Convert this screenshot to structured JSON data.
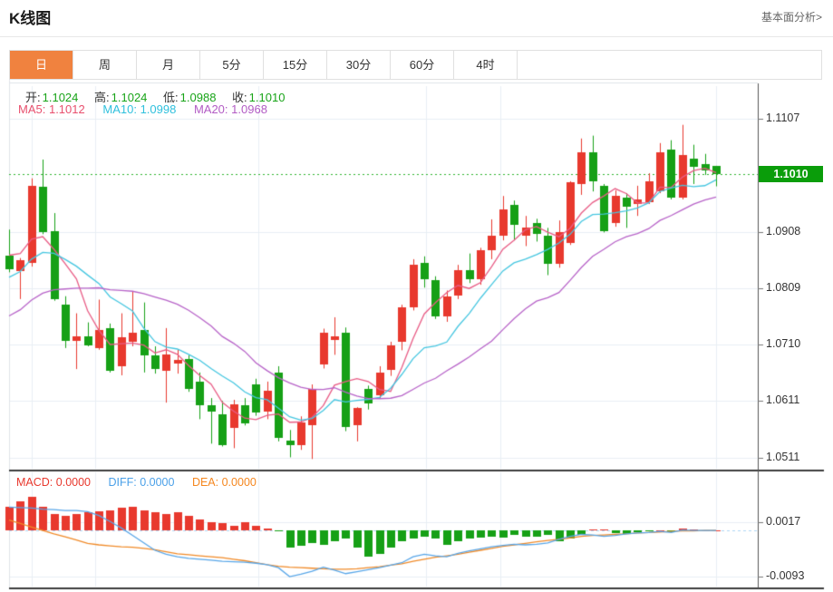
{
  "page": {
    "title": "K线图",
    "analysis_link": "基本面分析>"
  },
  "tabs": [
    {
      "label": "日",
      "active": true
    },
    {
      "label": "周",
      "active": false
    },
    {
      "label": "月",
      "active": false
    },
    {
      "label": "5分",
      "active": false
    },
    {
      "label": "15分",
      "active": false
    },
    {
      "label": "30分",
      "active": false
    },
    {
      "label": "60分",
      "active": false
    },
    {
      "label": "4时",
      "active": false
    }
  ],
  "ohlc": {
    "open_label": "开:",
    "open": "1.1024",
    "high_label": "高:",
    "high": "1.1024",
    "low_label": "低:",
    "low": "1.0988",
    "close_label": "收:",
    "close": "1.1010"
  },
  "ma": {
    "ma5_label": "MA5:",
    "ma5": "1.1012",
    "ma10_label": "MA10:",
    "ma10": "1.0998",
    "ma20_label": "MA20:",
    "ma20": "1.0968"
  },
  "macd_readout": {
    "macd_label": "MACD:",
    "macd": "0.0000",
    "diff_label": "DIFF:",
    "diff": "0.0000",
    "dea_label": "DEA:",
    "dea": "0.0000"
  },
  "current_price": "1.1010",
  "chart_data": {
    "type": "candlestick",
    "title": "K线图",
    "x_axis": {
      "labels_visible": false,
      "n_bars": 64
    },
    "price_panel": {
      "ylim": [
        1.0492,
        1.1164
      ],
      "yticks": [
        1.1107,
        1.0908,
        1.0809,
        1.071,
        1.0611,
        1.0511
      ],
      "current_price": 1.101,
      "grid": true,
      "ma_periods": [
        5,
        10,
        20
      ],
      "seed_closes": [
        1.064,
        1.065,
        1.0662,
        1.0674,
        1.0686,
        1.0698,
        1.071,
        1.0722,
        1.0734,
        1.0746,
        1.0758,
        1.0772,
        1.0788,
        1.0806,
        1.0824,
        1.0844,
        1.0864,
        1.0884,
        1.09
      ],
      "candles": [
        [
          1.0867,
          1.0912,
          1.0837,
          1.0843
        ],
        [
          1.084,
          1.0862,
          1.079,
          1.0859
        ],
        [
          1.0853,
          1.1002,
          1.0847,
          1.0989
        ],
        [
          1.0987,
          1.1035,
          1.0904,
          1.0907
        ],
        [
          1.0909,
          1.0941,
          1.0787,
          1.0789
        ],
        [
          1.0781,
          1.0795,
          1.0704,
          1.0717
        ],
        [
          1.0717,
          1.0765,
          1.0667,
          1.0725
        ],
        [
          1.0725,
          1.0749,
          1.0707,
          1.0709
        ],
        [
          1.0704,
          1.0789,
          1.0701,
          1.0736
        ],
        [
          1.0739,
          1.0747,
          1.0661,
          1.0664
        ],
        [
          1.0672,
          1.0765,
          1.0656,
          1.0723
        ],
        [
          1.0715,
          1.0803,
          1.0707,
          1.0731
        ],
        [
          1.0736,
          1.0784,
          1.0661,
          1.0691
        ],
        [
          1.0691,
          1.0707,
          1.0659,
          1.0667
        ],
        [
          1.0664,
          1.0739,
          1.0608,
          1.0693
        ],
        [
          1.0677,
          1.0701,
          1.0659,
          1.0683
        ],
        [
          1.0685,
          1.0691,
          1.0627,
          1.0632
        ],
        [
          1.0645,
          1.0661,
          1.0579,
          1.0603
        ],
        [
          1.0603,
          1.0616,
          1.0536,
          1.0592
        ],
        [
          1.0587,
          1.0611,
          1.0531,
          1.0533
        ],
        [
          1.0563,
          1.0613,
          1.0528,
          1.0605
        ],
        [
          1.0603,
          1.0616,
          1.0568,
          1.0571
        ],
        [
          1.064,
          1.065,
          1.0585,
          1.059
        ],
        [
          1.0592,
          1.0645,
          1.0579,
          1.0629
        ],
        [
          1.066,
          1.0672,
          1.054,
          1.0545
        ],
        [
          1.0541,
          1.056,
          1.0512,
          1.0533
        ],
        [
          1.0533,
          1.0584,
          1.0525,
          1.0573
        ],
        [
          1.0568,
          1.064,
          1.0509,
          1.0632
        ],
        [
          1.0675,
          1.0738,
          1.0668,
          1.0731
        ],
        [
          1.0718,
          1.0758,
          1.0692,
          1.0725
        ],
        [
          1.0731,
          1.074,
          1.0558,
          1.0565
        ],
        [
          1.0568,
          1.06,
          1.054,
          1.0598
        ],
        [
          1.0632,
          1.0638,
          1.0596,
          1.0607
        ],
        [
          1.0621,
          1.0672,
          1.0615,
          1.0661
        ],
        [
          1.0665,
          1.0715,
          1.0655,
          1.0708
        ],
        [
          1.0715,
          1.078,
          1.07,
          1.0776
        ],
        [
          1.0776,
          1.086,
          1.077,
          1.0851
        ],
        [
          1.0853,
          1.0865,
          1.081,
          1.0824
        ],
        [
          1.0824,
          1.083,
          1.0755,
          1.076
        ],
        [
          1.076,
          1.0805,
          1.075,
          1.0795
        ],
        [
          1.0795,
          1.085,
          1.079,
          1.084
        ],
        [
          1.084,
          1.087,
          1.0818,
          1.0824
        ],
        [
          1.0824,
          1.088,
          1.0815,
          1.0875
        ],
        [
          1.0875,
          1.093,
          1.086,
          1.0901
        ],
        [
          1.0901,
          1.0971,
          1.0893,
          1.0947
        ],
        [
          1.0955,
          1.0963,
          1.0893,
          1.092
        ],
        [
          1.0901,
          1.0936,
          1.0883,
          1.0915
        ],
        [
          1.0923,
          1.0931,
          1.0891,
          1.0904
        ],
        [
          1.0901,
          1.0915,
          1.0832,
          1.0851
        ],
        [
          1.0851,
          1.0928,
          1.0845,
          1.0907
        ],
        [
          1.0888,
          1.0997,
          1.0885,
          1.0995
        ],
        [
          1.0992,
          1.1072,
          1.0973,
          1.1048
        ],
        [
          1.1048,
          1.1077,
          1.0979,
          1.0997
        ],
        [
          1.0989,
          1.0992,
          1.0907,
          1.0909
        ],
        [
          1.0923,
          1.0981,
          1.0917,
          1.0971
        ],
        [
          1.0968,
          1.0976,
          1.0915,
          1.0952
        ],
        [
          1.0957,
          1.0989,
          1.0936,
          1.0965
        ],
        [
          1.096,
          1.1011,
          1.0957,
          1.0997
        ],
        [
          1.0979,
          1.1064,
          1.0976,
          1.1048
        ],
        [
          1.1053,
          1.1069,
          1.0965,
          1.0968
        ],
        [
          1.0968,
          1.1096,
          1.0965,
          1.1043
        ],
        [
          1.1037,
          1.1061,
          1.0992,
          1.1023
        ],
        [
          1.1027,
          1.1045,
          1.1008,
          1.1016
        ],
        [
          1.1024,
          1.1024,
          1.0988,
          1.101
        ]
      ]
    },
    "macd_panel": {
      "ylim": [
        -0.0113,
        0.0117
      ],
      "yticks": [
        0.0017,
        -0.0093
      ],
      "zero_line": 0.0,
      "hist": [
        0.0047,
        0.0059,
        0.0067,
        0.0048,
        0.0033,
        0.0029,
        0.0033,
        0.0036,
        0.0038,
        0.004,
        0.0045,
        0.0047,
        0.004,
        0.0036,
        0.0033,
        0.0036,
        0.0029,
        0.0022,
        0.0017,
        0.0014,
        0.001,
        0.0016,
        0.001,
        0.0003,
        -0.0002,
        -0.0035,
        -0.0031,
        -0.0026,
        -0.0029,
        -0.0021,
        -0.0017,
        -0.0035,
        -0.0052,
        -0.0047,
        -0.0035,
        -0.0022,
        -0.0017,
        -0.0012,
        -0.0017,
        -0.0029,
        -0.0022,
        -0.0017,
        -0.0014,
        -0.0012,
        -0.0014,
        -0.0009,
        -0.0012,
        -0.0012,
        -0.0009,
        -0.0021,
        -0.0017,
        -0.0009,
        0.0002,
        0.0002,
        -0.0005,
        -0.0007,
        -0.0003,
        -0.0002,
        0.0001,
        -0.0004,
        0.0004,
        0.0002,
        0.0001,
        0.0
      ],
      "diff": [
        0.0047,
        0.0046,
        0.0045,
        0.0043,
        0.0042,
        0.004,
        0.004,
        0.0038,
        0.003,
        0.0018,
        0.0005,
        -0.001,
        -0.0025,
        -0.004,
        -0.0048,
        -0.0053,
        -0.0056,
        -0.0058,
        -0.006,
        -0.0062,
        -0.0063,
        -0.0064,
        -0.0066,
        -0.0069,
        -0.0075,
        -0.0093,
        -0.0088,
        -0.0082,
        -0.0074,
        -0.008,
        -0.0087,
        -0.0083,
        -0.0079,
        -0.0075,
        -0.007,
        -0.0065,
        -0.0053,
        -0.0048,
        -0.0051,
        -0.0053,
        -0.0046,
        -0.0041,
        -0.0037,
        -0.0033,
        -0.003,
        -0.0028,
        -0.0029,
        -0.0028,
        -0.0025,
        -0.0018,
        -0.0012,
        -0.0008,
        -0.0009,
        -0.0012,
        -0.001,
        -0.0007,
        -0.0005,
        -0.0004,
        -0.0002,
        -0.0004,
        0.0001,
        0.0,
        0.0,
        0.0
      ],
      "dea": [
        0.0021,
        0.0014,
        0.0007,
        0.0,
        -0.0007,
        -0.0013,
        -0.0019,
        -0.0026,
        -0.0029,
        -0.0031,
        -0.0033,
        -0.0034,
        -0.0036,
        -0.0039,
        -0.0043,
        -0.0047,
        -0.0049,
        -0.0051,
        -0.0053,
        -0.0055,
        -0.0058,
        -0.0061,
        -0.0065,
        -0.0069,
        -0.0072,
        -0.0074,
        -0.0075,
        -0.0076,
        -0.0077,
        -0.0078,
        -0.0078,
        -0.0077,
        -0.0075,
        -0.0073,
        -0.007,
        -0.0067,
        -0.0062,
        -0.0058,
        -0.0054,
        -0.0051,
        -0.0048,
        -0.0044,
        -0.004,
        -0.0036,
        -0.0032,
        -0.0029,
        -0.0026,
        -0.0023,
        -0.002,
        -0.0018,
        -0.0015,
        -0.0012,
        -0.001,
        -0.0009,
        -0.0008,
        -0.0007,
        -0.0005,
        -0.0004,
        -0.0003,
        -0.0002,
        -0.0001,
        -0.0001,
        0.0,
        0.0
      ]
    },
    "colors": {
      "up": "#e8392e",
      "down": "#16a016",
      "ma5_line": "#e85c85",
      "ma10_line": "#45c6e0",
      "ma20_line": "#b763c8",
      "diff_line": "#58a6e8",
      "dea_line": "#f08a28",
      "price_dotted_line": "#2db52d",
      "badge": "#0a9d0a",
      "macd_zero_dash": "#aed6f5",
      "grid": "#e8eef4",
      "tab_active": "#f0823f",
      "ohlc_value": "#18a418"
    }
  }
}
